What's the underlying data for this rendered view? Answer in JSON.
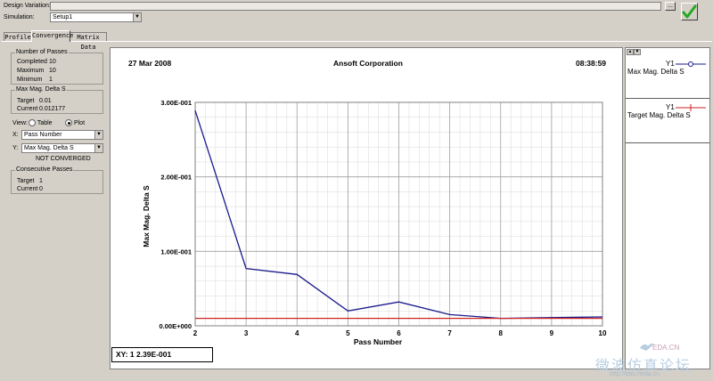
{
  "header": {
    "design_variation_label": "Design Variation:",
    "design_variation_value": "",
    "browse_label": "...",
    "simulation_label": "Simulation:",
    "simulation_value": "Setup1",
    "apply_icon": "checkmark-icon"
  },
  "tabs": [
    {
      "label": "Profile",
      "active": false
    },
    {
      "label": "Convergence",
      "active": true
    },
    {
      "label": "Matrix Data",
      "active": false
    }
  ],
  "passes": {
    "title": "Number of Passes",
    "completed_label": "Completed",
    "completed_value": "10",
    "maximum_label": "Maximum",
    "maximum_value": "10",
    "minimum_label": "Minimum",
    "minimum_value": "1"
  },
  "delta": {
    "title": "Max Mag. Delta S",
    "target_label": "Target",
    "target_value": "0.01",
    "current_label": "Current",
    "current_value": "0.012177"
  },
  "view": {
    "label": "View:",
    "table_label": "Table",
    "plot_label": "Plot",
    "selected": "Plot",
    "x_label": "X:",
    "x_value": "Pass Number",
    "y_label": "Y:",
    "y_value": "Max Mag. Delta S",
    "status": "NOT CONVERGED"
  },
  "consecutive": {
    "title": "Consecutive Passes",
    "target_label": "Target",
    "target_value": "1",
    "current_label": "Current",
    "current_value": "0"
  },
  "plot": {
    "date": "27 Mar 2008",
    "company": "Ansoft Corporation",
    "time": "08:38:59",
    "xy_readout": "XY:  1 2.39E-001"
  },
  "legend": [
    {
      "series": "Y1",
      "name": "Max Mag. Delta S",
      "color": "#1a1a8c"
    },
    {
      "series": "Y1",
      "name": "Target Mag. Delta S",
      "color": "#cc2222"
    }
  ],
  "watermark": {
    "line1": "EDA.CN",
    "line2": "微波仿真论坛",
    "line3": "http://bbs.rfeda.cn"
  },
  "chart_data": {
    "type": "line",
    "xlabel": "Pass Number",
    "ylabel": "Max Mag. Delta S",
    "xlim": [
      2,
      10
    ],
    "ylim": [
      0,
      0.3
    ],
    "x_ticks": [
      "2",
      "3",
      "4",
      "5",
      "6",
      "7",
      "8",
      "9",
      "10"
    ],
    "y_ticks": [
      "0.00E+000",
      "1.00E-001",
      "2.00E-001",
      "3.00E-001"
    ],
    "grid": true,
    "legend_position": "right",
    "series": [
      {
        "name": "Max Mag. Delta S",
        "color": "#1a1a8c",
        "x": [
          2,
          3,
          4,
          5,
          6,
          7,
          8,
          9,
          10
        ],
        "y": [
          0.289,
          0.077,
          0.069,
          0.02,
          0.032,
          0.015,
          0.01,
          0.011,
          0.012
        ]
      },
      {
        "name": "Target Mag. Delta S",
        "color": "#cc2222",
        "x": [
          2,
          10
        ],
        "y": [
          0.01,
          0.01
        ]
      }
    ]
  }
}
